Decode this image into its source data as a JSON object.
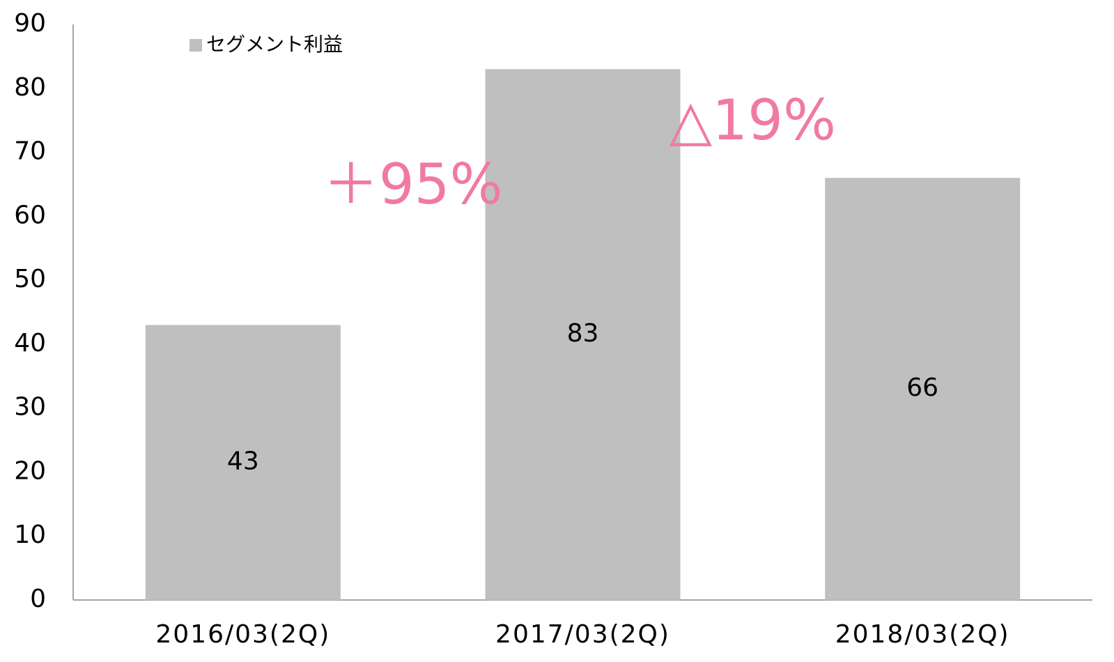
{
  "chart_data": {
    "type": "bar",
    "categories": [
      "2016/03(2Q)",
      "2017/03(2Q)",
      "2018/03(2Q)"
    ],
    "series": [
      {
        "name": "セグメント利益",
        "color": "#bfbfbf",
        "values": [
          43,
          83,
          66
        ]
      }
    ],
    "ylim": [
      0,
      90
    ],
    "yticks": [
      0,
      10,
      20,
      30,
      40,
      50,
      60,
      70,
      80,
      90
    ],
    "grid": false,
    "legend": "top-left",
    "annotations": [
      {
        "text": "＋95%",
        "color": "#f07aa0"
      },
      {
        "text": "△19%",
        "color": "#f07aa0"
      }
    ]
  }
}
